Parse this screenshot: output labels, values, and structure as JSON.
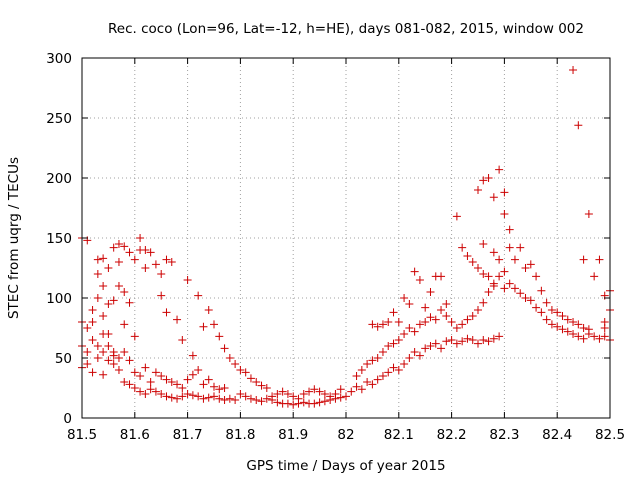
{
  "chart_data": {
    "type": "scatter",
    "title": "Rec. coco (Lon=96, Lat=-12, h=HE), days 081-082, 2015, window 002",
    "xlabel": "GPS time / Days of year 2015",
    "ylabel": "STEC from uqrg / TECUs",
    "xlim": [
      81.5,
      82.5
    ],
    "ylim": [
      0,
      300
    ],
    "xticks": [
      "81.5",
      "81.6",
      "81.7",
      "81.8",
      "81.9",
      "82",
      "82.1",
      "82.2",
      "82.3",
      "82.4",
      "82.5"
    ],
    "yticks": [
      "0",
      "50",
      "100",
      "150",
      "200",
      "250",
      "300"
    ],
    "grid": true,
    "marker": "+",
    "color": "#cc0000",
    "points": [
      [
        81.5,
        150
      ],
      [
        81.51,
        148
      ],
      [
        81.5,
        80
      ],
      [
        81.5,
        60
      ],
      [
        81.51,
        75
      ],
      [
        81.51,
        55
      ],
      [
        81.52,
        90
      ],
      [
        81.52,
        65
      ],
      [
        81.53,
        132
      ],
      [
        81.53,
        120
      ],
      [
        81.53,
        100
      ],
      [
        81.54,
        133
      ],
      [
        81.54,
        110
      ],
      [
        81.54,
        85
      ],
      [
        81.54,
        70
      ],
      [
        81.55,
        125
      ],
      [
        81.55,
        95
      ],
      [
        81.55,
        60
      ],
      [
        81.56,
        142
      ],
      [
        81.56,
        98
      ],
      [
        81.56,
        55
      ],
      [
        81.57,
        145
      ],
      [
        81.57,
        130
      ],
      [
        81.57,
        110
      ],
      [
        81.58,
        143
      ],
      [
        81.58,
        105
      ],
      [
        81.58,
        78
      ],
      [
        81.59,
        138
      ],
      [
        81.59,
        96
      ],
      [
        81.6,
        132
      ],
      [
        81.6,
        68
      ],
      [
        81.61,
        150
      ],
      [
        81.61,
        140
      ],
      [
        81.62,
        140
      ],
      [
        81.62,
        125
      ],
      [
        81.63,
        138
      ],
      [
        81.64,
        128
      ],
      [
        81.65,
        120
      ],
      [
        81.65,
        102
      ],
      [
        81.66,
        88
      ],
      [
        81.66,
        132
      ],
      [
        81.67,
        130
      ],
      [
        81.68,
        82
      ],
      [
        81.69,
        65
      ],
      [
        81.5,
        42
      ],
      [
        81.51,
        45
      ],
      [
        81.52,
        38
      ],
      [
        81.53,
        50
      ],
      [
        81.54,
        36
      ],
      [
        81.55,
        48
      ],
      [
        81.56,
        52
      ],
      [
        81.57,
        40
      ],
      [
        81.58,
        55
      ],
      [
        81.59,
        48
      ],
      [
        81.6,
        38
      ],
      [
        81.61,
        35
      ],
      [
        81.62,
        42
      ],
      [
        81.63,
        30
      ],
      [
        81.64,
        38
      ],
      [
        81.65,
        35
      ],
      [
        81.66,
        32
      ],
      [
        81.67,
        30
      ],
      [
        81.68,
        28
      ],
      [
        81.69,
        25
      ],
      [
        81.7,
        32
      ],
      [
        81.71,
        36
      ],
      [
        81.72,
        40
      ],
      [
        81.73,
        28
      ],
      [
        81.74,
        32
      ],
      [
        81.75,
        26
      ],
      [
        81.76,
        24
      ],
      [
        81.77,
        25
      ],
      [
        81.52,
        80
      ],
      [
        81.53,
        60
      ],
      [
        81.54,
        55
      ],
      [
        81.55,
        70
      ],
      [
        81.56,
        45
      ],
      [
        81.57,
        50
      ],
      [
        81.58,
        30
      ],
      [
        81.59,
        28
      ],
      [
        81.6,
        25
      ],
      [
        81.61,
        22
      ],
      [
        81.62,
        20
      ],
      [
        81.63,
        24
      ],
      [
        81.64,
        22
      ],
      [
        81.65,
        20
      ],
      [
        81.66,
        18
      ],
      [
        81.67,
        17
      ],
      [
        81.68,
        16
      ],
      [
        81.69,
        18
      ],
      [
        81.7,
        20
      ],
      [
        81.71,
        19
      ],
      [
        81.72,
        18
      ],
      [
        81.73,
        16
      ],
      [
        81.74,
        17
      ],
      [
        81.75,
        18
      ],
      [
        81.76,
        16
      ],
      [
        81.77,
        15
      ],
      [
        81.78,
        16
      ],
      [
        81.79,
        15
      ],
      [
        81.7,
        115
      ],
      [
        81.71,
        52
      ],
      [
        81.72,
        102
      ],
      [
        81.73,
        76
      ],
      [
        81.74,
        90
      ],
      [
        81.75,
        78
      ],
      [
        81.76,
        68
      ],
      [
        81.77,
        58
      ],
      [
        81.78,
        50
      ],
      [
        81.79,
        45
      ],
      [
        81.8,
        40
      ],
      [
        81.81,
        38
      ],
      [
        81.82,
        33
      ],
      [
        81.83,
        30
      ],
      [
        81.84,
        27
      ],
      [
        81.85,
        25
      ],
      [
        81.8,
        20
      ],
      [
        81.81,
        18
      ],
      [
        81.82,
        16
      ],
      [
        81.83,
        15
      ],
      [
        81.84,
        14
      ],
      [
        81.85,
        16
      ],
      [
        81.86,
        18
      ],
      [
        81.87,
        20
      ],
      [
        81.88,
        22
      ],
      [
        81.89,
        20
      ],
      [
        81.9,
        18
      ],
      [
        81.91,
        16
      ],
      [
        81.92,
        20
      ],
      [
        81.93,
        22
      ],
      [
        81.94,
        24
      ],
      [
        81.95,
        22
      ],
      [
        81.96,
        20
      ],
      [
        81.97,
        18
      ],
      [
        81.98,
        20
      ],
      [
        81.99,
        24
      ],
      [
        81.86,
        15
      ],
      [
        81.87,
        13
      ],
      [
        81.88,
        12
      ],
      [
        81.89,
        12
      ],
      [
        81.9,
        11
      ],
      [
        81.91,
        12
      ],
      [
        81.92,
        13
      ],
      [
        81.93,
        12
      ],
      [
        81.94,
        12
      ],
      [
        81.95,
        13
      ],
      [
        81.96,
        14
      ],
      [
        81.97,
        15
      ],
      [
        81.98,
        16
      ],
      [
        81.99,
        17
      ],
      [
        82.0,
        18
      ],
      [
        82.01,
        22
      ],
      [
        82.02,
        26
      ],
      [
        82.03,
        24
      ],
      [
        82.04,
        30
      ],
      [
        82.05,
        28
      ],
      [
        82.06,
        32
      ],
      [
        82.07,
        35
      ],
      [
        82.08,
        38
      ],
      [
        82.09,
        42
      ],
      [
        82.1,
        40
      ],
      [
        82.11,
        45
      ],
      [
        82.12,
        50
      ],
      [
        82.13,
        55
      ],
      [
        82.14,
        52
      ],
      [
        82.15,
        58
      ],
      [
        82.16,
        60
      ],
      [
        82.17,
        62
      ],
      [
        82.18,
        58
      ],
      [
        82.19,
        64
      ],
      [
        82.2,
        65
      ],
      [
        82.21,
        62
      ],
      [
        82.22,
        64
      ],
      [
        82.23,
        66
      ],
      [
        82.24,
        65
      ],
      [
        82.25,
        62
      ],
      [
        82.26,
        65
      ],
      [
        82.27,
        64
      ],
      [
        82.28,
        66
      ],
      [
        82.29,
        68
      ],
      [
        82.02,
        35
      ],
      [
        82.03,
        40
      ],
      [
        82.04,
        45
      ],
      [
        82.05,
        48
      ],
      [
        82.06,
        50
      ],
      [
        82.07,
        55
      ],
      [
        82.08,
        60
      ],
      [
        82.09,
        62
      ],
      [
        82.1,
        65
      ],
      [
        82.11,
        70
      ],
      [
        82.12,
        75
      ],
      [
        82.13,
        72
      ],
      [
        82.14,
        78
      ],
      [
        82.15,
        80
      ],
      [
        82.16,
        84
      ],
      [
        82.17,
        82
      ],
      [
        82.18,
        90
      ],
      [
        82.19,
        95
      ],
      [
        82.05,
        78
      ],
      [
        82.06,
        76
      ],
      [
        82.07,
        78
      ],
      [
        82.08,
        80
      ],
      [
        82.09,
        88
      ],
      [
        82.1,
        80
      ],
      [
        82.11,
        100
      ],
      [
        82.12,
        95
      ],
      [
        82.13,
        122
      ],
      [
        82.14,
        115
      ],
      [
        82.15,
        92
      ],
      [
        82.16,
        105
      ],
      [
        82.17,
        118
      ],
      [
        82.18,
        118
      ],
      [
        82.19,
        85
      ],
      [
        82.2,
        80
      ],
      [
        82.21,
        168
      ],
      [
        82.22,
        142
      ],
      [
        82.23,
        135
      ],
      [
        82.24,
        130
      ],
      [
        82.25,
        125
      ],
      [
        82.26,
        120
      ],
      [
        82.27,
        118
      ],
      [
        82.28,
        110
      ],
      [
        82.21,
        75
      ],
      [
        82.22,
        78
      ],
      [
        82.23,
        82
      ],
      [
        82.24,
        85
      ],
      [
        82.25,
        90
      ],
      [
        82.26,
        96
      ],
      [
        82.27,
        105
      ],
      [
        82.28,
        112
      ],
      [
        82.29,
        118
      ],
      [
        82.3,
        108
      ],
      [
        82.25,
        190
      ],
      [
        82.26,
        198
      ],
      [
        82.27,
        200
      ],
      [
        82.28,
        184
      ],
      [
        82.29,
        207
      ],
      [
        82.3,
        188
      ],
      [
        82.3,
        170
      ],
      [
        82.31,
        157
      ],
      [
        82.31,
        142
      ],
      [
        82.32,
        132
      ],
      [
        82.33,
        142
      ],
      [
        82.34,
        125
      ],
      [
        82.35,
        128
      ],
      [
        82.36,
        118
      ],
      [
        82.37,
        106
      ],
      [
        82.38,
        96
      ],
      [
        82.39,
        90
      ],
      [
        82.4,
        88
      ],
      [
        82.41,
        85
      ],
      [
        82.42,
        82
      ],
      [
        82.43,
        80
      ],
      [
        82.44,
        78
      ],
      [
        82.45,
        75
      ],
      [
        82.46,
        74
      ],
      [
        82.26,
        145
      ],
      [
        82.28,
        138
      ],
      [
        82.29,
        132
      ],
      [
        82.3,
        122
      ],
      [
        82.31,
        112
      ],
      [
        82.32,
        108
      ],
      [
        82.33,
        104
      ],
      [
        82.34,
        100
      ],
      [
        82.35,
        98
      ],
      [
        82.36,
        92
      ],
      [
        82.37,
        88
      ],
      [
        82.38,
        82
      ],
      [
        82.39,
        78
      ],
      [
        82.4,
        76
      ],
      [
        82.41,
        74
      ],
      [
        82.42,
        72
      ],
      [
        82.43,
        70
      ],
      [
        82.44,
        68
      ],
      [
        82.45,
        66
      ],
      [
        82.46,
        70
      ],
      [
        82.47,
        68
      ],
      [
        82.48,
        66
      ],
      [
        82.49,
        68
      ],
      [
        82.43,
        290
      ],
      [
        82.44,
        244
      ],
      [
        82.45,
        132
      ],
      [
        82.46,
        170
      ],
      [
        82.47,
        118
      ],
      [
        82.48,
        132
      ],
      [
        82.49,
        102
      ],
      [
        82.5,
        106
      ],
      [
        82.5,
        90
      ],
      [
        82.49,
        80
      ],
      [
        82.5,
        65
      ],
      [
        82.49,
        75
      ]
    ]
  }
}
